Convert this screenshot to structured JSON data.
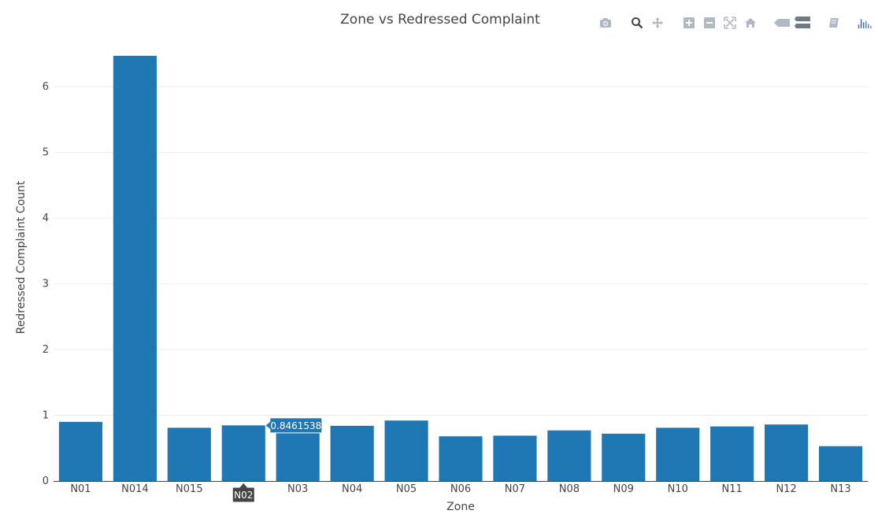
{
  "chart_data": {
    "type": "bar",
    "title": "Zone vs Redressed Complaint",
    "xlabel": "Zone",
    "ylabel": "Redressed Complaint Count",
    "categories": [
      "N01",
      "N014",
      "N015",
      "N02",
      "N03",
      "N04",
      "N05",
      "N06",
      "N07",
      "N08",
      "N09",
      "N10",
      "N11",
      "N12",
      "N13"
    ],
    "values": [
      0.9,
      6.47,
      0.81,
      0.8461538,
      0.73,
      0.84,
      0.92,
      0.68,
      0.69,
      0.77,
      0.72,
      0.81,
      0.83,
      0.86,
      0.53
    ],
    "ylim": [
      0,
      6.6
    ],
    "yticks": [
      0,
      1,
      2,
      3,
      4,
      5,
      6
    ],
    "grid": true,
    "bar_color": "#1f77b4",
    "hover": {
      "category": "N02",
      "value_label": "0.8461538",
      "x_label": "N02"
    }
  },
  "modebar": {
    "buttons": [
      "camera-icon",
      "zoom-icon",
      "pan-icon",
      "zoom-in-icon",
      "zoom-out-icon",
      "autoscale-icon",
      "reset-axes-icon",
      "hover-closest-icon",
      "hover-compare-icon",
      "edit-icon",
      "plotly-logo-icon"
    ]
  }
}
